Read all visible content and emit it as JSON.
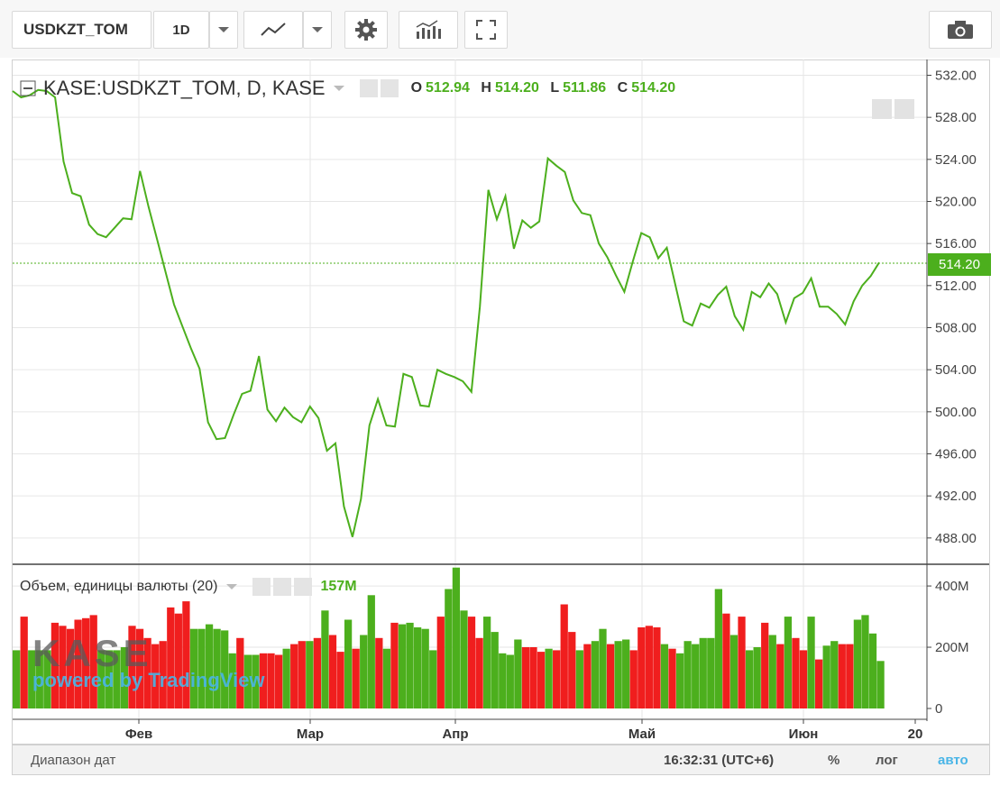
{
  "toolbar": {
    "symbol": "USDKZT_TOM",
    "interval": "1D",
    "icons": [
      "chevron-down-icon",
      "line-chart-icon",
      "chevron-down-icon",
      "gear-icon",
      "indicators-icon",
      "fullscreen-icon",
      "camera-icon"
    ]
  },
  "legend": {
    "title": "KASE:USDKZT_TOM, D, KASE",
    "o_label": "O",
    "o": "512.94",
    "h_label": "H",
    "h": "514.20",
    "l_label": "L",
    "l": "511.86",
    "c_label": "C",
    "c": "514.20"
  },
  "volume_legend": {
    "title": "Объем, единицы валюты (20)",
    "value": "157M"
  },
  "last_price_tag": "514.20",
  "logo": {
    "brand": "KASE",
    "powered": "powered by TradingView"
  },
  "footer": {
    "range": "Диапазон дат",
    "time": "16:32:31 (UTC+6)",
    "percent": "%",
    "log": "лог",
    "auto": "авто"
  },
  "colors": {
    "up": "#4caf1d",
    "down": "#f01e1e",
    "line": "#4caf1d",
    "grid": "#e6e6e6"
  },
  "chart_data": [
    {
      "type": "line",
      "title": "KASE:USDKZT_TOM, D, KASE",
      "ylim": [
        485.5,
        533.5
      ],
      "yticks": [
        "532.00",
        "528.00",
        "524.00",
        "520.00",
        "516.00",
        "512.00",
        "508.00",
        "504.00",
        "500.00",
        "496.00",
        "492.00",
        "488.00"
      ],
      "xticks": [
        "Фев",
        "Мар",
        "Апр",
        "Май",
        "Июн",
        "20"
      ],
      "last": 514.2,
      "values": [
        530.5,
        529.9,
        530.1,
        530.6,
        530.5,
        529.9,
        523.8,
        520.8,
        520.5,
        517.8,
        516.9,
        516.6,
        517.5,
        518.4,
        518.3,
        522.9,
        519.5,
        516.4,
        513.3,
        510.2,
        508.1,
        506.0,
        504.1,
        499.0,
        497.4,
        497.5,
        499.7,
        501.7,
        502.0,
        505.3,
        500.2,
        499.1,
        500.4,
        499.5,
        499.0,
        500.5,
        499.4,
        496.3,
        497.0,
        491.0,
        488.1,
        491.7,
        498.7,
        501.2,
        498.7,
        498.6,
        503.6,
        503.3,
        500.6,
        500.5,
        504.0,
        503.6,
        503.3,
        502.9,
        501.9,
        510.0,
        521.1,
        518.3,
        520.5,
        515.5,
        518.2,
        517.5,
        518.1,
        524.1,
        523.4,
        522.8,
        520.1,
        518.9,
        518.7,
        516.0,
        514.7,
        513.0,
        511.4,
        514.3,
        517.0,
        516.6,
        514.6,
        515.6,
        512.1,
        508.6,
        508.2,
        510.3,
        509.9,
        511.1,
        511.9,
        509.1,
        507.8,
        511.4,
        510.9,
        512.2,
        511.2,
        508.5,
        510.8,
        511.3,
        512.7,
        510.0,
        510.0,
        509.3,
        508.3,
        510.5,
        512.0,
        512.9,
        514.2
      ]
    },
    {
      "type": "bar",
      "title": "Объем, единицы валюты (20)",
      "ylim": [
        0,
        465
      ],
      "yticks": [
        "400M",
        "200M",
        "0"
      ],
      "values": [
        190,
        300,
        190,
        190,
        190,
        280,
        270,
        260,
        290,
        295,
        305,
        190,
        190,
        190,
        200,
        270,
        260,
        230,
        210,
        220,
        330,
        310,
        350,
        260,
        260,
        275,
        260,
        255,
        180,
        230,
        175,
        175,
        180,
        180,
        175,
        195,
        210,
        220,
        220,
        230,
        320,
        240,
        185,
        290,
        195,
        240,
        370,
        230,
        195,
        280,
        275,
        280,
        265,
        260,
        190,
        300,
        390,
        460,
        320,
        300,
        230,
        300,
        250,
        180,
        175,
        225,
        200,
        200,
        185,
        195,
        190,
        340,
        250,
        190,
        210,
        220,
        260,
        210,
        220,
        225,
        190,
        265,
        270,
        265,
        210,
        195,
        180,
        220,
        210,
        230,
        230,
        390,
        310,
        240,
        300,
        190,
        200,
        280,
        240,
        210,
        300,
        230,
        190,
        300,
        160,
        205,
        220,
        210,
        210,
        290,
        305,
        245,
        155
      ],
      "up": [
        true,
        false,
        true,
        true,
        true,
        false,
        false,
        false,
        false,
        false,
        false,
        true,
        true,
        true,
        true,
        false,
        false,
        false,
        false,
        false,
        false,
        false,
        false,
        true,
        true,
        true,
        true,
        true,
        true,
        false,
        true,
        true,
        false,
        false,
        false,
        true,
        false,
        false,
        true,
        false,
        true,
        false,
        false,
        true,
        false,
        true,
        true,
        false,
        true,
        false,
        true,
        true,
        true,
        true,
        true,
        false,
        true,
        true,
        true,
        false,
        false,
        true,
        true,
        true,
        true,
        true,
        false,
        false,
        false,
        true,
        false,
        false,
        false,
        true,
        false,
        true,
        true,
        false,
        true,
        true,
        false,
        false,
        false,
        false,
        true,
        false,
        true,
        true,
        true,
        true,
        true,
        true,
        false,
        true,
        false,
        true,
        true,
        false,
        true,
        false,
        true,
        false,
        false,
        true,
        false,
        true,
        true,
        false,
        false,
        true,
        true,
        true,
        true
      ]
    }
  ]
}
